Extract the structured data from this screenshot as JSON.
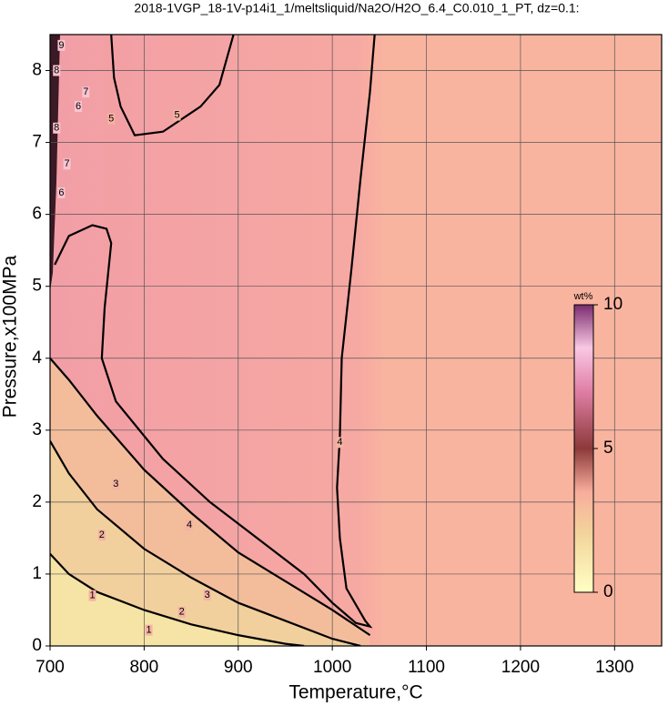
{
  "chart_data": {
    "type": "contour",
    "title": "2018-1VGP_18-1V-p14i1_1/meltsliquid/Na2O/H2O_6.4_C0.010_1_PT, dz=0.1:",
    "x_label": "Temperature,°C",
    "y_label": "Pressure,x100MPa",
    "xlim": [
      700,
      1350
    ],
    "xticks": [
      700,
      800,
      900,
      1000,
      1100,
      1200,
      1300
    ],
    "ylim": [
      0,
      8.5
    ],
    "yticks": [
      0,
      1,
      2,
      3,
      4,
      5,
      6,
      7,
      8
    ],
    "grid": true,
    "colorbar": {
      "title": "wt%",
      "lim": [
        0,
        10
      ],
      "ticks": [
        0,
        5,
        10
      ]
    },
    "contours": [
      {
        "level": 1,
        "x": [
          700,
          720,
          750,
          800,
          850,
          900,
          950,
          970
        ],
        "y": [
          1.28,
          1.0,
          0.75,
          0.5,
          0.3,
          0.15,
          0.03,
          0
        ]
      },
      {
        "level": 2,
        "x": [
          700,
          720,
          750,
          800,
          850,
          900,
          950,
          1000,
          1030
        ],
        "y": [
          2.85,
          2.4,
          1.9,
          1.35,
          0.95,
          0.6,
          0.35,
          0.1,
          0
        ]
      },
      {
        "level": 3,
        "x": [
          700,
          720,
          750,
          800,
          850,
          900,
          950,
          1000,
          1040
        ],
        "y": [
          4.0,
          3.7,
          3.2,
          2.45,
          1.85,
          1.3,
          0.9,
          0.5,
          0.15
        ]
      },
      {
        "level": 4,
        "x": [
          705,
          720,
          745,
          760,
          765,
          758,
          755,
          770,
          820,
          870,
          920,
          970,
          1000,
          1025,
          1040,
          1035,
          1015,
          1008,
          1005,
          1008,
          1010,
          1020,
          1030,
          1040,
          1045
        ],
        "y": [
          5.3,
          5.7,
          5.85,
          5.8,
          5.6,
          4.7,
          4.0,
          3.4,
          2.6,
          2.0,
          1.5,
          1.0,
          0.6,
          0.32,
          0.27,
          0.35,
          0.8,
          1.5,
          2.2,
          2.9,
          4.0,
          5.2,
          6.5,
          7.7,
          8.5
        ]
      },
      {
        "level": 5,
        "x": [
          765,
          768,
          775,
          790,
          820,
          860,
          880,
          895
        ],
        "y": [
          8.5,
          7.9,
          7.5,
          7.1,
          7.15,
          7.5,
          7.8,
          8.5
        ]
      }
    ],
    "contour_labels": [
      {
        "level": 1,
        "x": 745,
        "y": 0.7
      },
      {
        "level": 1,
        "x": 805,
        "y": 0.22
      },
      {
        "level": 2,
        "x": 755,
        "y": 1.54
      },
      {
        "level": 2,
        "x": 840,
        "y": 0.47
      },
      {
        "level": 3,
        "x": 770,
        "y": 2.25
      },
      {
        "level": 3,
        "x": 867,
        "y": 0.71
      },
      {
        "level": 4,
        "x": 848,
        "y": 1.68
      },
      {
        "level": 4,
        "x": 1008,
        "y": 2.83
      },
      {
        "level": 5,
        "x": 765,
        "y": 7.33
      },
      {
        "level": 5,
        "x": 835,
        "y": 7.38
      },
      {
        "level": 6,
        "x": 712,
        "y": 6.3
      },
      {
        "level": 7,
        "x": 718,
        "y": 6.7
      },
      {
        "level": 8,
        "x": 707,
        "y": 7.2
      },
      {
        "level": 6,
        "x": 730,
        "y": 7.5
      },
      {
        "level": 7,
        "x": 738,
        "y": 7.7
      },
      {
        "level": 8,
        "x": 707,
        "y": 8.0
      },
      {
        "level": 9,
        "x": 712,
        "y": 8.35
      }
    ]
  }
}
